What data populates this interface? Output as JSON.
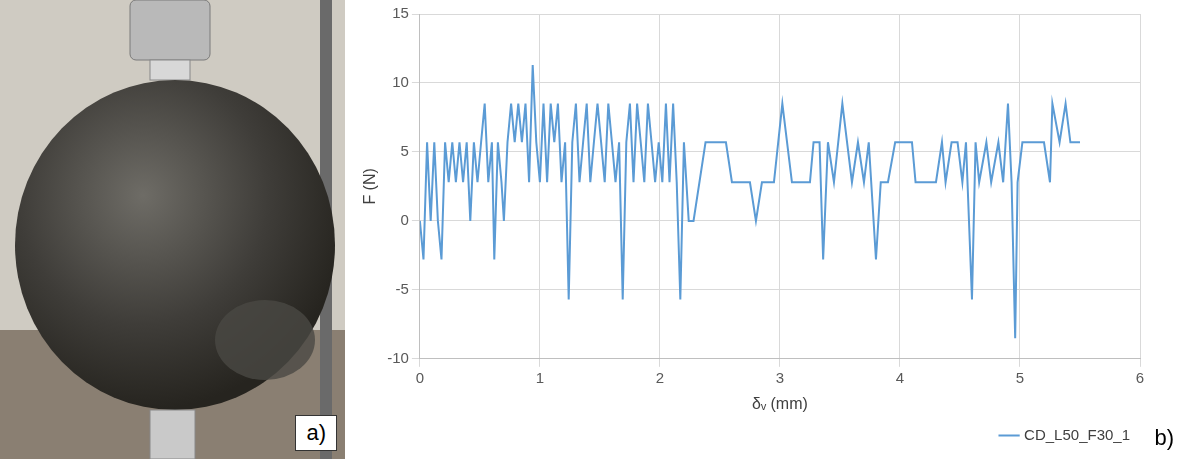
{
  "photo_panel": {
    "label": "a)"
  },
  "chart_data": {
    "type": "line",
    "annotations": [
      "b)"
    ],
    "x_label": "δᵥ (mm)",
    "y_label": "F (N)",
    "xlim": [
      0,
      6
    ],
    "xticks": [
      0,
      1,
      2,
      3,
      4,
      5,
      6
    ],
    "ylim": [
      -10,
      15
    ],
    "yticks": [
      -10,
      -5,
      0,
      5,
      10,
      15
    ],
    "grid": true,
    "legend": "bottom",
    "series": [
      {
        "name": "CD_L50_F30_1",
        "color": "#5b9bd5",
        "x": [
          0,
          0.03,
          0.06,
          0.09,
          0.12,
          0.15,
          0.18,
          0.21,
          0.24,
          0.27,
          0.3,
          0.33,
          0.36,
          0.39,
          0.42,
          0.45,
          0.48,
          0.51,
          0.54,
          0.57,
          0.6,
          0.62,
          0.65,
          0.68,
          0.7,
          0.73,
          0.76,
          0.79,
          0.82,
          0.85,
          0.88,
          0.91,
          0.94,
          0.97,
          1.0,
          1.03,
          1.06,
          1.09,
          1.12,
          1.15,
          1.18,
          1.21,
          1.24,
          1.27,
          1.3,
          1.33,
          1.36,
          1.39,
          1.42,
          1.45,
          1.48,
          1.51,
          1.54,
          1.57,
          1.6,
          1.63,
          1.66,
          1.69,
          1.72,
          1.75,
          1.78,
          1.81,
          1.84,
          1.87,
          1.9,
          1.93,
          1.96,
          1.99,
          2.02,
          2.05,
          2.08,
          2.11,
          2.14,
          2.17,
          2.2,
          2.24,
          2.28,
          2.38,
          2.55,
          2.6,
          2.75,
          2.8,
          2.85,
          2.95,
          3.02,
          3.1,
          3.25,
          3.28,
          3.33,
          3.36,
          3.4,
          3.45,
          3.52,
          3.6,
          3.65,
          3.7,
          3.74,
          3.8,
          3.84,
          3.9,
          3.96,
          4.1,
          4.13,
          4.3,
          4.35,
          4.38,
          4.43,
          4.48,
          4.52,
          4.55,
          4.6,
          4.63,
          4.66,
          4.72,
          4.76,
          4.82,
          4.86,
          4.9,
          4.93,
          4.96,
          4.98,
          5.02,
          5.2,
          5.25,
          5.27,
          5.33,
          5.38,
          5.42,
          5.5
        ],
        "values": [
          0,
          -2.8,
          5.7,
          0,
          5.7,
          0,
          -2.8,
          5.7,
          2.8,
          5.7,
          2.8,
          5.7,
          2.8,
          5.7,
          0,
          5.7,
          2.8,
          5.7,
          8.5,
          2.8,
          5.7,
          -2.8,
          5.7,
          2.8,
          0,
          5.7,
          8.5,
          5.7,
          8.5,
          5.7,
          8.5,
          2.8,
          11.3,
          5.7,
          2.8,
          8.5,
          2.8,
          8.5,
          5.7,
          8.5,
          2.8,
          5.7,
          -5.7,
          5.7,
          8.5,
          2.8,
          5.7,
          8.5,
          2.8,
          5.7,
          8.5,
          5.7,
          2.8,
          8.5,
          5.7,
          2.8,
          5.7,
          -5.7,
          5.7,
          8.5,
          2.8,
          8.5,
          5.7,
          2.8,
          8.5,
          5.7,
          2.8,
          5.7,
          2.8,
          8.5,
          2.8,
          8.5,
          2.8,
          -5.7,
          5.7,
          0,
          0,
          5.7,
          5.7,
          2.8,
          2.8,
          0,
          2.8,
          2.8,
          8.5,
          2.8,
          2.8,
          5.7,
          5.7,
          -2.8,
          5.7,
          2.8,
          8.5,
          2.8,
          5.7,
          2.8,
          5.7,
          -2.8,
          2.8,
          2.8,
          5.7,
          5.7,
          2.8,
          2.8,
          5.7,
          2.8,
          5.7,
          5.7,
          2.8,
          5.7,
          -5.7,
          5.7,
          2.8,
          5.7,
          2.8,
          5.7,
          2.8,
          8.5,
          2.8,
          -8.5,
          2.8,
          5.7,
          5.7,
          2.8,
          8.5,
          5.7,
          8.5,
          5.7,
          5.7
        ]
      }
    ]
  }
}
